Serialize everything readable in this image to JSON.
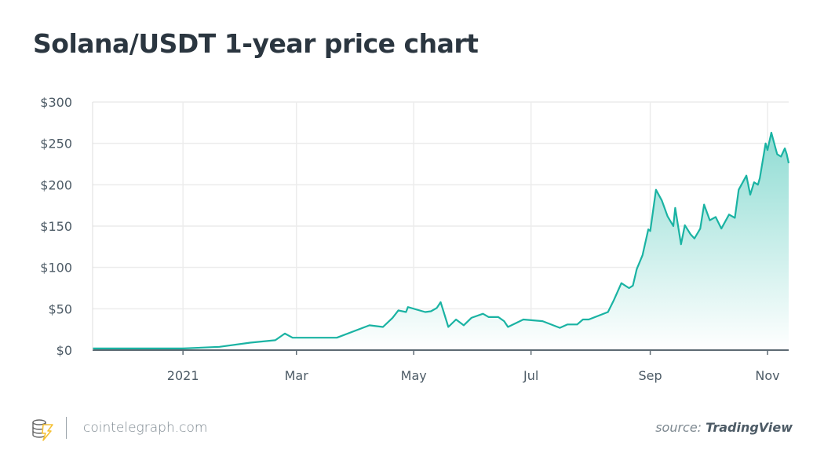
{
  "title": "Solana/USDT 1-year price chart",
  "footer": {
    "site": "cointelegraph.com",
    "source_prefix": "source:",
    "source_name": "TradingView",
    "logo_icon": "cointelegraph-coin-lightning-logo"
  },
  "colors": {
    "line": "#1ab3a3",
    "fill_top": "#8fdcd3",
    "axis": "#5d6a73",
    "grid": "#ececec",
    "title": "#2b3640",
    "logo_accent": "#f5c033"
  },
  "chart_data": {
    "type": "area",
    "title": "Solana/USDT 1-year price chart",
    "xlabel": "",
    "ylabel": "",
    "xlim": [
      "2020-11-15",
      "2021-11-12"
    ],
    "ylim": [
      0,
      300
    ],
    "y_ticks": [
      "$0",
      "$50",
      "$100",
      "$150",
      "$200",
      "$250",
      "$300"
    ],
    "y_tick_values": [
      0,
      50,
      100,
      150,
      200,
      250,
      300
    ],
    "x_ticks": [
      "2021",
      "Mar",
      "May",
      "Jul",
      "Sep",
      "Nov"
    ],
    "x_tick_dates": [
      "2021-01-01",
      "2021-03-01",
      "2021-05-01",
      "2021-07-01",
      "2021-09-01",
      "2021-11-01"
    ],
    "grid": true,
    "series": [
      {
        "points": [
          [
            "2020-11-15",
            2
          ],
          [
            "2021-01-01",
            2
          ],
          [
            "2021-01-20",
            4
          ],
          [
            "2021-02-05",
            9
          ],
          [
            "2021-02-18",
            12
          ],
          [
            "2021-02-23",
            20
          ],
          [
            "2021-02-27",
            15
          ],
          [
            "2021-03-22",
            15
          ],
          [
            "2021-04-08",
            30
          ],
          [
            "2021-04-15",
            28
          ],
          [
            "2021-04-20",
            39
          ],
          [
            "2021-04-23",
            48
          ],
          [
            "2021-04-27",
            46
          ],
          [
            "2021-04-28",
            52
          ],
          [
            "2021-05-07",
            46
          ],
          [
            "2021-05-10",
            47
          ],
          [
            "2021-05-13",
            51
          ],
          [
            "2021-05-15",
            58
          ],
          [
            "2021-05-19",
            28
          ],
          [
            "2021-05-23",
            37
          ],
          [
            "2021-05-27",
            30
          ],
          [
            "2021-05-31",
            39
          ],
          [
            "2021-06-06",
            44
          ],
          [
            "2021-06-09",
            40
          ],
          [
            "2021-06-14",
            40
          ],
          [
            "2021-06-17",
            35
          ],
          [
            "2021-06-19",
            28
          ],
          [
            "2021-06-27",
            37
          ],
          [
            "2021-07-07",
            35
          ],
          [
            "2021-07-16",
            27
          ],
          [
            "2021-07-20",
            31
          ],
          [
            "2021-07-25",
            31
          ],
          [
            "2021-07-28",
            37
          ],
          [
            "2021-07-31",
            37
          ],
          [
            "2021-08-10",
            46
          ],
          [
            "2021-08-13",
            60
          ],
          [
            "2021-08-17",
            81
          ],
          [
            "2021-08-21",
            75
          ],
          [
            "2021-08-23",
            78
          ],
          [
            "2021-08-25",
            98
          ],
          [
            "2021-08-28",
            115
          ],
          [
            "2021-08-31",
            146
          ],
          [
            "2021-09-01",
            144
          ],
          [
            "2021-09-04",
            194
          ],
          [
            "2021-09-07",
            181
          ],
          [
            "2021-09-10",
            162
          ],
          [
            "2021-09-13",
            150
          ],
          [
            "2021-09-14",
            172
          ],
          [
            "2021-09-17",
            128
          ],
          [
            "2021-09-19",
            151
          ],
          [
            "2021-09-22",
            140
          ],
          [
            "2021-09-24",
            135
          ],
          [
            "2021-09-27",
            147
          ],
          [
            "2021-09-29",
            176
          ],
          [
            "2021-10-02",
            157
          ],
          [
            "2021-10-05",
            161
          ],
          [
            "2021-10-08",
            147
          ],
          [
            "2021-10-12",
            164
          ],
          [
            "2021-10-15",
            160
          ],
          [
            "2021-10-17",
            194
          ],
          [
            "2021-10-21",
            211
          ],
          [
            "2021-10-23",
            188
          ],
          [
            "2021-10-25",
            203
          ],
          [
            "2021-10-27",
            200
          ],
          [
            "2021-10-28",
            208
          ],
          [
            "2021-10-31",
            250
          ],
          [
            "2021-11-01",
            242
          ],
          [
            "2021-11-03",
            263
          ],
          [
            "2021-11-06",
            237
          ],
          [
            "2021-11-08",
            234
          ],
          [
            "2021-11-10",
            244
          ],
          [
            "2021-11-11",
            237
          ],
          [
            "2021-11-12",
            226
          ]
        ]
      }
    ]
  }
}
